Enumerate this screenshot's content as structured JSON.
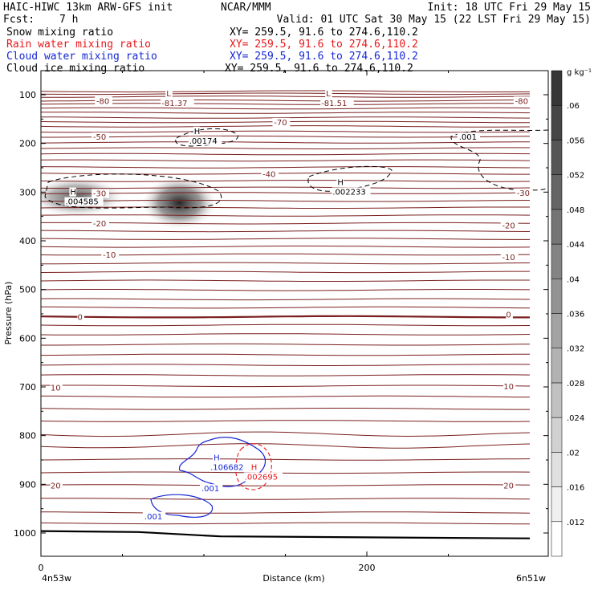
{
  "header": {
    "title": "HAIC-HIWC 13km ARW-GFS init",
    "org": "NCAR/MMM",
    "init": "Init: 18 UTC Fri 29 May 15",
    "fcst_label": "Fcst:",
    "fcst_value": "7 h",
    "valid": "Valid: 01 UTC Sat 30 May 15 (22 LST Fri 29 May 15)"
  },
  "fields": [
    {
      "name": "Snow mixing ratio",
      "xy": "XY= 259.5, 91.6 to 274.6,110.2",
      "color": "#000000"
    },
    {
      "name": "Rain water mixing ratio",
      "xy": "XY= 259.5, 91.6 to 274.6,110.2",
      "color": "#e8171b"
    },
    {
      "name": "Cloud water mixing ratio",
      "xy": "XY= 259.5, 91.6 to 274.6,110.2",
      "color": "#1528d6"
    },
    {
      "name": "Cloud ice mixing ratio",
      "xy": "XY= 259.5, 91.6 to 274.6,110.2",
      "color": "#000000"
    }
  ],
  "colorbar": {
    "unit": "g kg⁻¹",
    "levels": [
      0.012,
      0.016,
      0.02,
      0.024,
      0.028,
      0.032,
      0.036,
      0.04,
      0.044,
      0.048,
      0.052,
      0.056,
      0.06
    ],
    "labels": [
      ".012",
      ".016",
      ".02",
      ".024",
      ".028",
      ".032",
      ".036",
      ".04",
      ".044",
      ".048",
      ".052",
      ".056",
      ".06"
    ]
  },
  "chart_data": {
    "type": "cross-section",
    "xlabel": "Distance (km)",
    "ylabel": "Pressure (hPa)",
    "xlim": [
      0,
      300
    ],
    "ylim": [
      1050,
      70
    ],
    "xticks": [
      0,
      200
    ],
    "yticks": [
      100,
      200,
      300,
      400,
      500,
      600,
      700,
      800,
      900,
      1000
    ],
    "x_end_labels": {
      "left": "4n53w",
      "right": "6n51w"
    },
    "temperature_contours": {
      "color": "#7a1f1f",
      "interval": 5,
      "labels": [
        {
          "text": "-80",
          "x": 38,
          "p": 112
        },
        {
          "text": "-80",
          "x": 295,
          "p": 112
        },
        {
          "text": "-70",
          "x": 147,
          "p": 156
        },
        {
          "text": "-50",
          "x": 36,
          "p": 186
        },
        {
          "text": "-40",
          "x": 140,
          "p": 262
        },
        {
          "text": "-30",
          "x": 36,
          "p": 302
        },
        {
          "text": "-30",
          "x": 296,
          "p": 301
        },
        {
          "text": "-20",
          "x": 36,
          "p": 364
        },
        {
          "text": "-20",
          "x": 287,
          "p": 368
        },
        {
          "text": "-10",
          "x": 42,
          "p": 428
        },
        {
          "text": "-10",
          "x": 287,
          "p": 433
        },
        {
          "text": "0",
          "x": 24,
          "p": 556
        },
        {
          "text": "0",
          "x": 287,
          "p": 551
        },
        {
          "text": "10",
          "x": 9,
          "p": 701
        },
        {
          "text": "10",
          "x": 287,
          "p": 698
        },
        {
          "text": "20",
          "x": 9,
          "p": 902
        },
        {
          "text": "20",
          "x": 287,
          "p": 902
        }
      ],
      "extrema": [
        {
          "kind": "L",
          "value": "-81.37",
          "x": 74,
          "p": 95
        },
        {
          "kind": "L",
          "value": "-81.51",
          "x": 172,
          "p": 95
        }
      ]
    },
    "cloud_ice": {
      "style": "dashed",
      "labels": [
        {
          "text": ".001",
          "x": 262,
          "p": 186
        }
      ],
      "maxima": [
        {
          "kind": "H",
          "value": ".00174",
          "x": 91,
          "p": 187
        },
        {
          "kind": "H",
          "value": ".002233",
          "x": 179,
          "p": 292
        },
        {
          "kind": "H",
          "value": ".004585",
          "x": 15,
          "p": 312
        }
      ]
    },
    "snow_shading": [
      {
        "x": 22,
        "p": 310,
        "peak": 0.046
      },
      {
        "x": 85,
        "p": 322,
        "peak": 0.058
      }
    ],
    "cloud_water": {
      "color": "#1528d6",
      "labels": [
        {
          "text": ".001",
          "x": 104,
          "p": 908
        },
        {
          "text": ".001",
          "x": 69,
          "p": 965
        }
      ],
      "maxima": [
        {
          "kind": "H",
          "value": ".106682",
          "x": 104,
          "p": 856
        }
      ]
    },
    "rain_water": {
      "color": "#e8171b",
      "style": "dashed",
      "maxima": [
        {
          "kind": "H",
          "value": ".002695",
          "x": 125,
          "p": 884
        }
      ]
    },
    "terrain_surface_hpa": {
      "x": [
        0,
        60,
        110,
        300
      ],
      "p": [
        996,
        998,
        1007,
        1011
      ]
    }
  }
}
